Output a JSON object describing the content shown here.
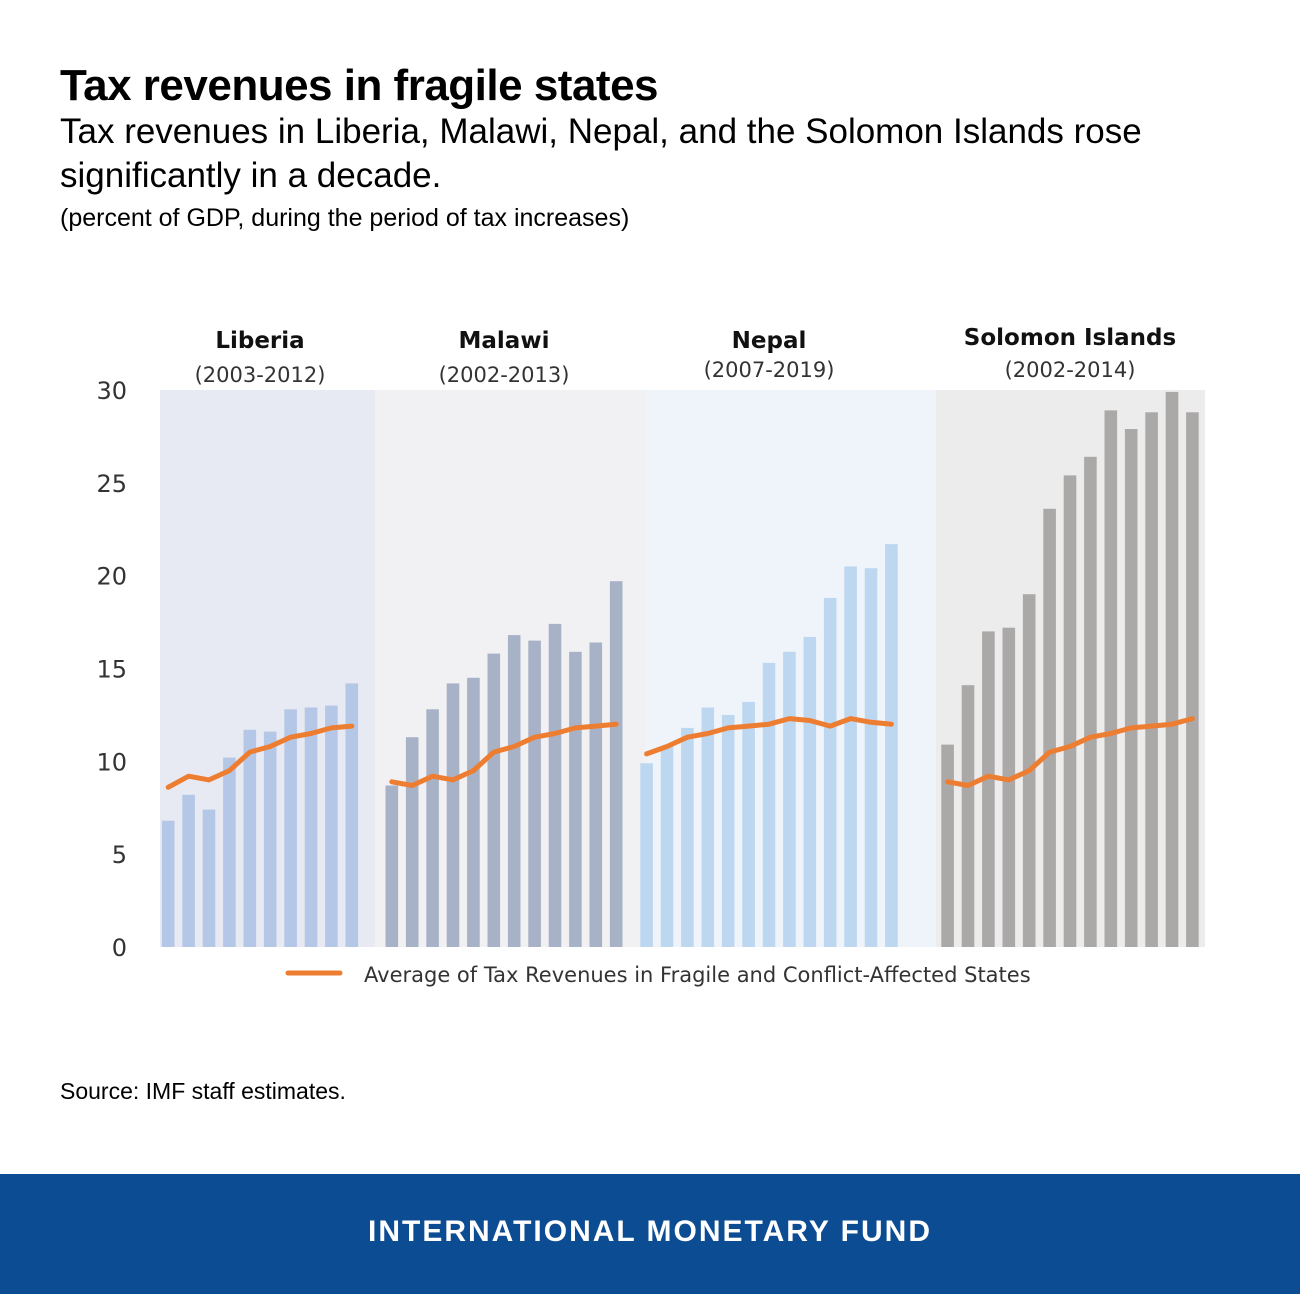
{
  "title": "Tax revenues in fragile states",
  "subtitle": "Tax revenues in Liberia, Malawi, Nepal, and the Solomon Islands rose significantly in a decade.",
  "units": "(percent of GDP, during the period of tax increases)",
  "source": "Source: IMF staff estimates.",
  "footer": {
    "label": "INTERNATIONAL MONETARY FUND",
    "background": "#0c4c93"
  },
  "chart_data": {
    "type": "bar",
    "title": "Tax revenues in fragile states",
    "ylabel": "percent of GDP",
    "ylim": [
      0,
      30
    ],
    "yticks": [
      0,
      5,
      10,
      15,
      20,
      25,
      30
    ],
    "grid": false,
    "legend": {
      "position": "bottom",
      "label": "Average of Tax Revenues in Fragile and Conflict-Affected States",
      "color": "#ed7d31"
    },
    "panels": [
      {
        "name": "Liberia",
        "period": "(2003-2012)",
        "bar_color": "#b4c7e7",
        "panel_bg": "#e7eaf3",
        "values": [
          6.8,
          8.2,
          7.4,
          10.2,
          11.7,
          11.6,
          12.8,
          12.9,
          13.0,
          14.2
        ],
        "average": [
          8.6,
          9.2,
          9.0,
          9.5,
          10.5,
          10.8,
          11.3,
          11.5,
          11.8,
          11.9
        ]
      },
      {
        "name": "Malawi",
        "period": "(2002-2013)",
        "bar_color": "#a8b2c7",
        "panel_bg": "#f1f1f3",
        "values": [
          8.7,
          11.3,
          12.8,
          14.2,
          14.5,
          15.8,
          16.8,
          16.5,
          17.4,
          15.9,
          16.4,
          19.7
        ],
        "average": [
          8.9,
          8.7,
          9.2,
          9.0,
          9.5,
          10.5,
          10.8,
          11.3,
          11.5,
          11.8,
          11.9,
          12.0
        ]
      },
      {
        "name": "Nepal",
        "period": "(2007-2019)",
        "bar_color": "#bdd7f0",
        "panel_bg": "#eff4fb",
        "values": [
          9.9,
          10.8,
          11.8,
          12.9,
          12.5,
          13.2,
          15.3,
          15.9,
          16.7,
          18.8,
          20.5,
          20.4,
          21.7
        ],
        "average": [
          10.4,
          10.8,
          11.3,
          11.5,
          11.8,
          11.9,
          12.0,
          12.3,
          12.2,
          11.9,
          12.3,
          12.1,
          12.0
        ]
      },
      {
        "name": "Solomon Islands",
        "period": "(2002-2014)",
        "bar_color": "#aba8a8",
        "panel_bg": "#ececec",
        "values": [
          10.9,
          14.1,
          17.0,
          17.2,
          19.0,
          23.6,
          25.4,
          26.4,
          28.9,
          27.9,
          28.8,
          29.9,
          28.8
        ],
        "average": [
          8.9,
          8.7,
          9.2,
          9.0,
          9.5,
          10.5,
          10.8,
          11.3,
          11.5,
          11.8,
          11.9,
          12.0,
          12.3
        ]
      }
    ]
  }
}
